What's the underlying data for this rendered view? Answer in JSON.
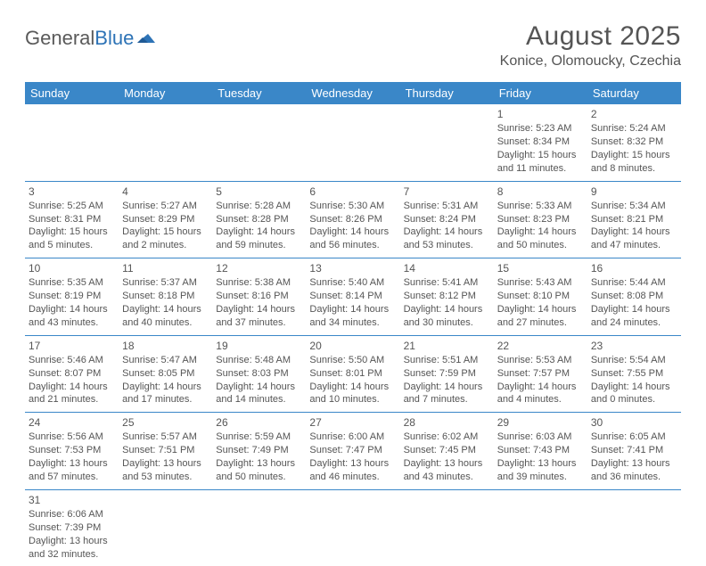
{
  "logo": {
    "part1": "General",
    "part2": "Blue"
  },
  "title": "August 2025",
  "subtitle": "Konice, Olomoucky, Czechia",
  "colors": {
    "header_bg": "#3a87c8",
    "header_text": "#ffffff",
    "cell_border": "#3a87c8",
    "text": "#555555",
    "logo_accent": "#2d73b6"
  },
  "daysOfWeek": [
    "Sunday",
    "Monday",
    "Tuesday",
    "Wednesday",
    "Thursday",
    "Friday",
    "Saturday"
  ],
  "weeks": [
    [
      null,
      null,
      null,
      null,
      null,
      {
        "n": "1",
        "sr": "Sunrise: 5:23 AM",
        "ss": "Sunset: 8:34 PM",
        "d1": "Daylight: 15 hours",
        "d2": "and 11 minutes."
      },
      {
        "n": "2",
        "sr": "Sunrise: 5:24 AM",
        "ss": "Sunset: 8:32 PM",
        "d1": "Daylight: 15 hours",
        "d2": "and 8 minutes."
      }
    ],
    [
      {
        "n": "3",
        "sr": "Sunrise: 5:25 AM",
        "ss": "Sunset: 8:31 PM",
        "d1": "Daylight: 15 hours",
        "d2": "and 5 minutes."
      },
      {
        "n": "4",
        "sr": "Sunrise: 5:27 AM",
        "ss": "Sunset: 8:29 PM",
        "d1": "Daylight: 15 hours",
        "d2": "and 2 minutes."
      },
      {
        "n": "5",
        "sr": "Sunrise: 5:28 AM",
        "ss": "Sunset: 8:28 PM",
        "d1": "Daylight: 14 hours",
        "d2": "and 59 minutes."
      },
      {
        "n": "6",
        "sr": "Sunrise: 5:30 AM",
        "ss": "Sunset: 8:26 PM",
        "d1": "Daylight: 14 hours",
        "d2": "and 56 minutes."
      },
      {
        "n": "7",
        "sr": "Sunrise: 5:31 AM",
        "ss": "Sunset: 8:24 PM",
        "d1": "Daylight: 14 hours",
        "d2": "and 53 minutes."
      },
      {
        "n": "8",
        "sr": "Sunrise: 5:33 AM",
        "ss": "Sunset: 8:23 PM",
        "d1": "Daylight: 14 hours",
        "d2": "and 50 minutes."
      },
      {
        "n": "9",
        "sr": "Sunrise: 5:34 AM",
        "ss": "Sunset: 8:21 PM",
        "d1": "Daylight: 14 hours",
        "d2": "and 47 minutes."
      }
    ],
    [
      {
        "n": "10",
        "sr": "Sunrise: 5:35 AM",
        "ss": "Sunset: 8:19 PM",
        "d1": "Daylight: 14 hours",
        "d2": "and 43 minutes."
      },
      {
        "n": "11",
        "sr": "Sunrise: 5:37 AM",
        "ss": "Sunset: 8:18 PM",
        "d1": "Daylight: 14 hours",
        "d2": "and 40 minutes."
      },
      {
        "n": "12",
        "sr": "Sunrise: 5:38 AM",
        "ss": "Sunset: 8:16 PM",
        "d1": "Daylight: 14 hours",
        "d2": "and 37 minutes."
      },
      {
        "n": "13",
        "sr": "Sunrise: 5:40 AM",
        "ss": "Sunset: 8:14 PM",
        "d1": "Daylight: 14 hours",
        "d2": "and 34 minutes."
      },
      {
        "n": "14",
        "sr": "Sunrise: 5:41 AM",
        "ss": "Sunset: 8:12 PM",
        "d1": "Daylight: 14 hours",
        "d2": "and 30 minutes."
      },
      {
        "n": "15",
        "sr": "Sunrise: 5:43 AM",
        "ss": "Sunset: 8:10 PM",
        "d1": "Daylight: 14 hours",
        "d2": "and 27 minutes."
      },
      {
        "n": "16",
        "sr": "Sunrise: 5:44 AM",
        "ss": "Sunset: 8:08 PM",
        "d1": "Daylight: 14 hours",
        "d2": "and 24 minutes."
      }
    ],
    [
      {
        "n": "17",
        "sr": "Sunrise: 5:46 AM",
        "ss": "Sunset: 8:07 PM",
        "d1": "Daylight: 14 hours",
        "d2": "and 21 minutes."
      },
      {
        "n": "18",
        "sr": "Sunrise: 5:47 AM",
        "ss": "Sunset: 8:05 PM",
        "d1": "Daylight: 14 hours",
        "d2": "and 17 minutes."
      },
      {
        "n": "19",
        "sr": "Sunrise: 5:48 AM",
        "ss": "Sunset: 8:03 PM",
        "d1": "Daylight: 14 hours",
        "d2": "and 14 minutes."
      },
      {
        "n": "20",
        "sr": "Sunrise: 5:50 AM",
        "ss": "Sunset: 8:01 PM",
        "d1": "Daylight: 14 hours",
        "d2": "and 10 minutes."
      },
      {
        "n": "21",
        "sr": "Sunrise: 5:51 AM",
        "ss": "Sunset: 7:59 PM",
        "d1": "Daylight: 14 hours",
        "d2": "and 7 minutes."
      },
      {
        "n": "22",
        "sr": "Sunrise: 5:53 AM",
        "ss": "Sunset: 7:57 PM",
        "d1": "Daylight: 14 hours",
        "d2": "and 4 minutes."
      },
      {
        "n": "23",
        "sr": "Sunrise: 5:54 AM",
        "ss": "Sunset: 7:55 PM",
        "d1": "Daylight: 14 hours",
        "d2": "and 0 minutes."
      }
    ],
    [
      {
        "n": "24",
        "sr": "Sunrise: 5:56 AM",
        "ss": "Sunset: 7:53 PM",
        "d1": "Daylight: 13 hours",
        "d2": "and 57 minutes."
      },
      {
        "n": "25",
        "sr": "Sunrise: 5:57 AM",
        "ss": "Sunset: 7:51 PM",
        "d1": "Daylight: 13 hours",
        "d2": "and 53 minutes."
      },
      {
        "n": "26",
        "sr": "Sunrise: 5:59 AM",
        "ss": "Sunset: 7:49 PM",
        "d1": "Daylight: 13 hours",
        "d2": "and 50 minutes."
      },
      {
        "n": "27",
        "sr": "Sunrise: 6:00 AM",
        "ss": "Sunset: 7:47 PM",
        "d1": "Daylight: 13 hours",
        "d2": "and 46 minutes."
      },
      {
        "n": "28",
        "sr": "Sunrise: 6:02 AM",
        "ss": "Sunset: 7:45 PM",
        "d1": "Daylight: 13 hours",
        "d2": "and 43 minutes."
      },
      {
        "n": "29",
        "sr": "Sunrise: 6:03 AM",
        "ss": "Sunset: 7:43 PM",
        "d1": "Daylight: 13 hours",
        "d2": "and 39 minutes."
      },
      {
        "n": "30",
        "sr": "Sunrise: 6:05 AM",
        "ss": "Sunset: 7:41 PM",
        "d1": "Daylight: 13 hours",
        "d2": "and 36 minutes."
      }
    ],
    [
      {
        "n": "31",
        "sr": "Sunrise: 6:06 AM",
        "ss": "Sunset: 7:39 PM",
        "d1": "Daylight: 13 hours",
        "d2": "and 32 minutes."
      },
      null,
      null,
      null,
      null,
      null,
      null
    ]
  ]
}
